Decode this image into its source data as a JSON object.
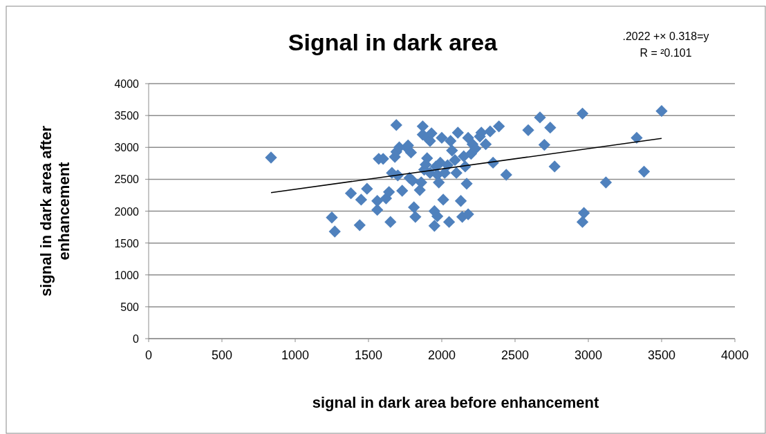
{
  "chart_data": {
    "type": "scatter",
    "title": "Signal in dark area",
    "xlabel": "signal in dark area before enhancement",
    "ylabel": "signal in dark area after enhancement",
    "annotations": [
      ".2022 +× 0.318=y",
      "R = ²0.101"
    ],
    "xlim": [
      0,
      4000
    ],
    "xticks": [
      0,
      500,
      1000,
      1500,
      2000,
      2500,
      3000,
      3500,
      4000
    ],
    "ylim": [
      0,
      4000
    ],
    "yticks": [
      0,
      500,
      1000,
      1500,
      2000,
      2500,
      3000,
      3500,
      4000
    ],
    "grid": "y",
    "marker": "diamond",
    "series": [
      {
        "color": "#4f81bd",
        "x": [
          835,
          1250,
          1270,
          1380,
          1440,
          1450,
          1490,
          1560,
          1560,
          1570,
          1600,
          1620,
          1640,
          1650,
          1660,
          1680,
          1690,
          1690,
          1700,
          1710,
          1730,
          1760,
          1770,
          1780,
          1790,
          1800,
          1810,
          1820,
          1850,
          1860,
          1870,
          1870,
          1880,
          1890,
          1900,
          1900,
          1920,
          1920,
          1930,
          1950,
          1950,
          1960,
          1970,
          1970,
          1980,
          1990,
          2000,
          2010,
          2020,
          2040,
          2050,
          2060,
          2070,
          2090,
          2100,
          2110,
          2130,
          2140,
          2150,
          2160,
          2170,
          2180,
          2180,
          2200,
          2210,
          2230,
          2260,
          2270,
          2300,
          2330,
          2350,
          2390,
          2440,
          2590,
          2670,
          2700,
          2740,
          2770,
          2960,
          2960,
          2970,
          3120,
          3330,
          3380,
          3500
        ],
        "values": [
          2840,
          1900,
          1680,
          2280,
          1780,
          2180,
          2350,
          2020,
          2160,
          2820,
          2820,
          2200,
          2300,
          1830,
          2600,
          2850,
          2930,
          3350,
          2560,
          3000,
          2320,
          3000,
          3030,
          2520,
          2920,
          2480,
          2060,
          1910,
          2330,
          2450,
          3200,
          3330,
          2650,
          2730,
          3150,
          2830,
          3100,
          2600,
          3220,
          1770,
          2000,
          2700,
          2570,
          1920,
          2450,
          2760,
          3150,
          2180,
          2600,
          2720,
          1830,
          3100,
          2950,
          2800,
          2600,
          3230,
          2160,
          1910,
          2860,
          2700,
          2430,
          3150,
          1950,
          2900,
          3050,
          2980,
          3170,
          3230,
          3050,
          3250,
          2760,
          3330,
          2570,
          3270,
          3470,
          3040,
          3310,
          2700,
          3530,
          1830,
          1970,
          2450,
          3150,
          2620,
          3570
        ]
      },
      {
        "type": "line",
        "color": "#000000",
        "marker": "none",
        "line_style": "solid",
        "x": [
          835,
          3500
        ],
        "values": [
          2290,
          3140
        ]
      }
    ]
  }
}
